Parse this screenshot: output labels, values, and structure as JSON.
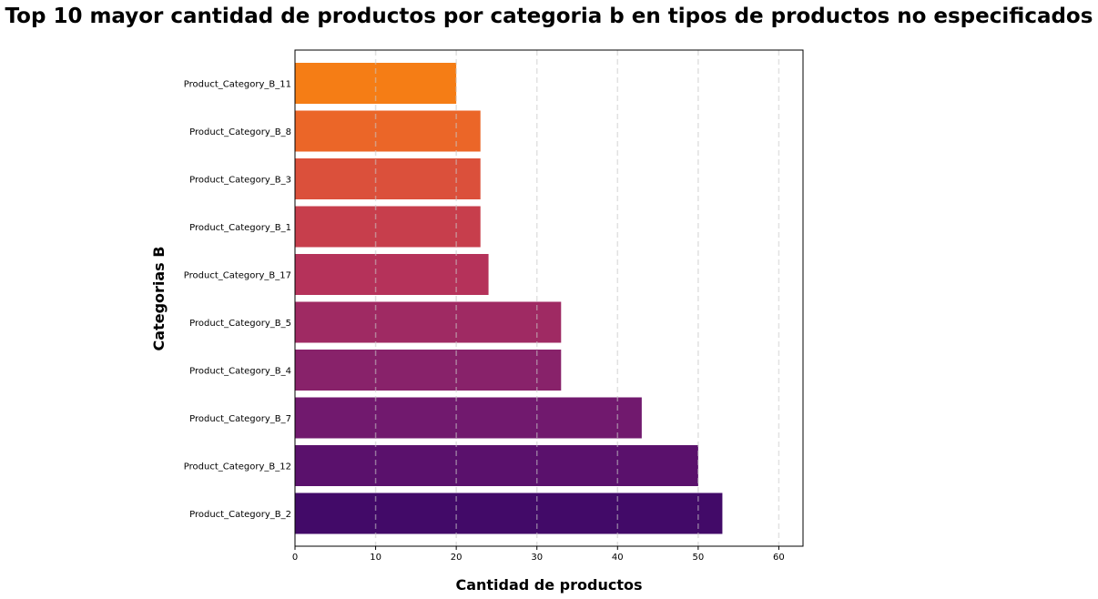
{
  "chart_data": {
    "type": "bar",
    "orientation": "horizontal",
    "title": "Top 10 mayor cantidad de productos por categoria b en tipos de productos no especificados",
    "xlabel": "Cantidad de productos",
    "ylabel": "Categorias B",
    "xlim": [
      0,
      63
    ],
    "xticks": [
      0,
      10,
      20,
      30,
      40,
      50,
      60
    ],
    "grid": "vertical dashed",
    "categories": [
      "Product_Category_B_2",
      "Product_Category_B_12",
      "Product_Category_B_7",
      "Product_Category_B_4",
      "Product_Category_B_5",
      "Product_Category_B_17",
      "Product_Category_B_1",
      "Product_Category_B_3",
      "Product_Category_B_8",
      "Product_Category_B_11"
    ],
    "values": [
      53,
      50,
      43,
      33,
      33,
      24,
      23,
      23,
      23,
      20
    ],
    "colors": [
      "#420A68",
      "#5A116C",
      "#71196E",
      "#88226A",
      "#9F2A63",
      "#B5325A",
      "#C73E4C",
      "#DB503B",
      "#EB6628",
      "#F57D15"
    ]
  }
}
